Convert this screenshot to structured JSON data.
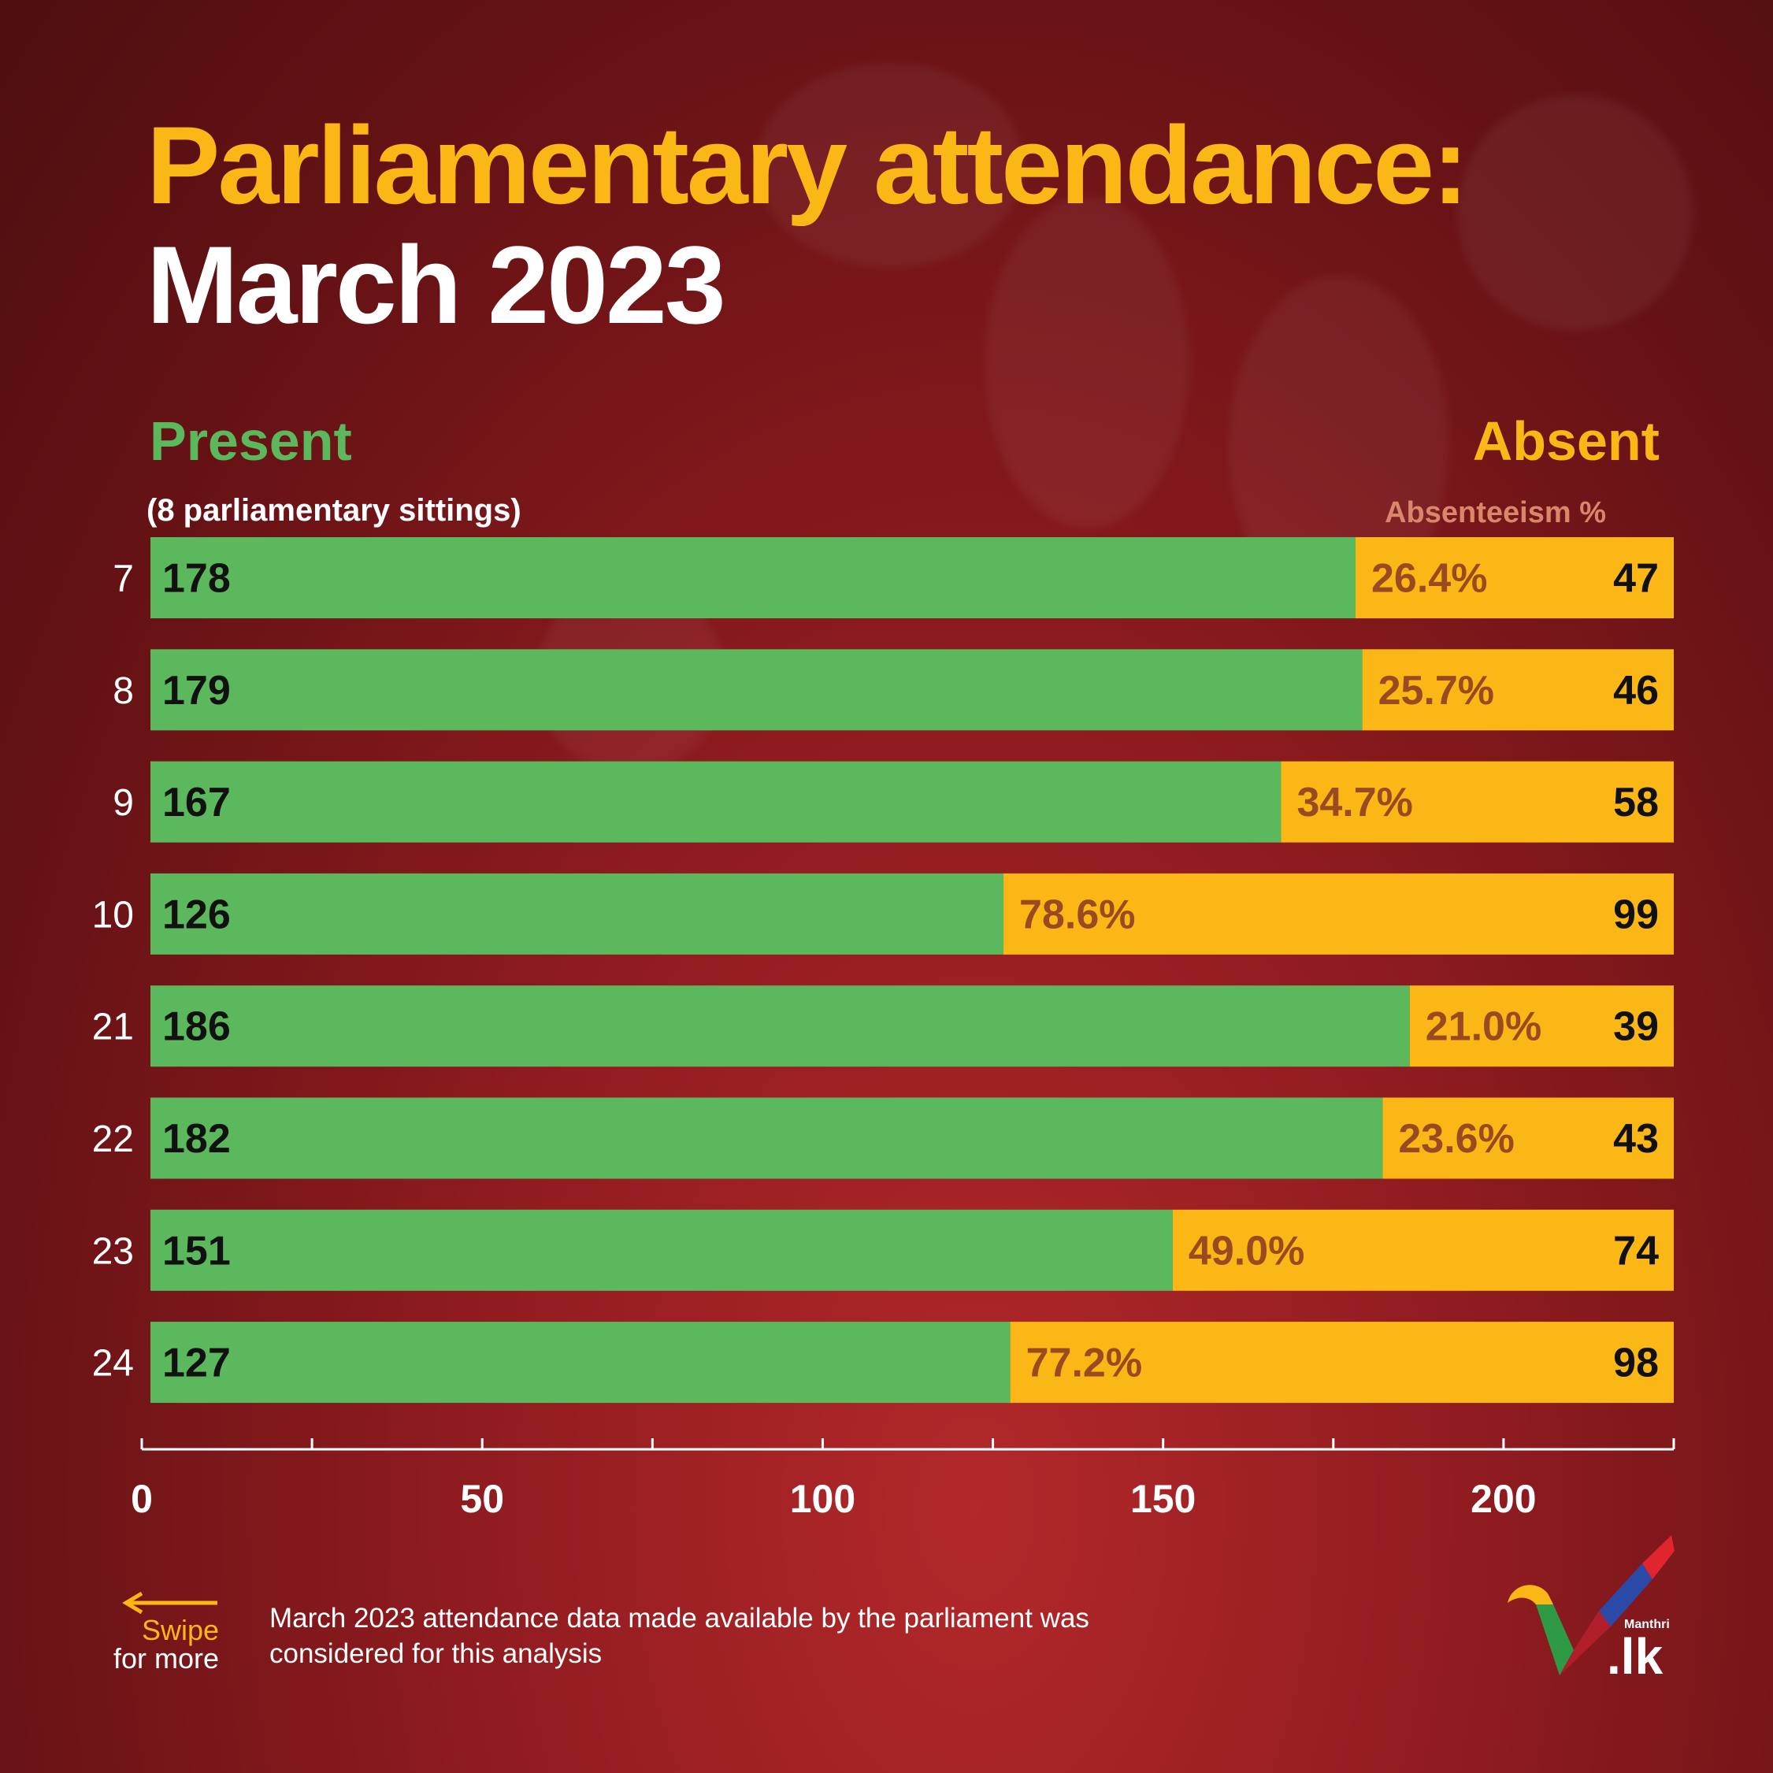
{
  "title_line1": "Parliamentary attendance:",
  "title_line2": "March 2023",
  "legend": {
    "present": "Present",
    "absent": "Absent",
    "sittings": "(8 parliamentary sittings)",
    "absenteeism_header": "Absenteeism %"
  },
  "colors": {
    "present": "#5cb85c",
    "absent": "#fbb715",
    "pct_text": "#9a4a20",
    "title_accent": "#fbb715"
  },
  "chart_data": {
    "type": "bar",
    "orientation": "horizontal",
    "stacked": true,
    "categories": [
      "7",
      "8",
      "9",
      "10",
      "21",
      "22",
      "23",
      "24"
    ],
    "series": [
      {
        "name": "Present",
        "values": [
          178,
          179,
          167,
          126,
          186,
          182,
          151,
          127
        ]
      },
      {
        "name": "Absent",
        "values": [
          47,
          46,
          58,
          99,
          39,
          43,
          74,
          98
        ]
      }
    ],
    "absenteeism_pct": [
      "26.4%",
      "25.7%",
      "34.7%",
      "78.6%",
      "21.0%",
      "23.6%",
      "49.0%",
      "77.2%"
    ],
    "xlim": [
      0,
      225
    ],
    "xticks": [
      0,
      50,
      100,
      150,
      200
    ],
    "xticks_minor": [
      25,
      75,
      125,
      175,
      225
    ]
  },
  "footer": {
    "note": "March 2023 attendance data made available by the parliament was considered for this analysis",
    "swipe": "Swipe",
    "for_more": "for more",
    "logo_brand": "Manthri",
    "logo_tld": ".lk"
  },
  "icons": {
    "swipe": "arrow-left-icon",
    "logo": "manthri-checkmark-logo"
  }
}
